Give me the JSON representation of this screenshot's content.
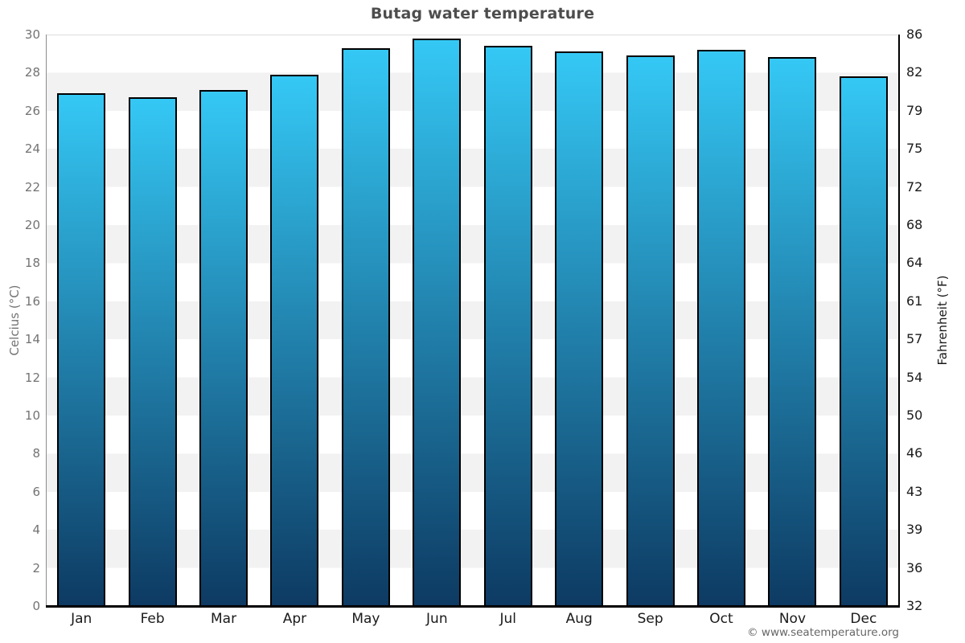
{
  "title": "Butag water temperature",
  "footer_credit": "© www.seatemperature.org",
  "chart_data": {
    "type": "bar",
    "title": "Butag water temperature",
    "ylabel_left": "Celcius (°C)",
    "ylabel_right": "Fahrenheit (°F)",
    "categories": [
      "Jan",
      "Feb",
      "Mar",
      "Apr",
      "May",
      "Jun",
      "Jul",
      "Aug",
      "Sep",
      "Oct",
      "Nov",
      "Dec"
    ],
    "values": [
      26.9,
      26.7,
      27.1,
      27.9,
      29.3,
      29.8,
      29.4,
      29.1,
      28.9,
      29.2,
      28.8,
      27.8
    ],
    "unit": "°C",
    "ylim": [
      0,
      30
    ],
    "yticks_celsius": [
      30,
      28,
      26,
      24,
      22,
      20,
      18,
      16,
      14,
      12,
      10,
      8,
      6,
      4,
      2,
      0
    ],
    "yticks_fahrenheit": [
      86,
      82,
      79,
      75,
      72,
      68,
      64,
      61,
      57,
      54,
      50,
      46,
      43,
      39,
      36,
      32
    ],
    "legend": "none",
    "grid": "horizontal-bands-every-2C",
    "colors": {
      "bar_gradient_top": "#35c8f5",
      "bar_gradient_bottom": "#0d3a62",
      "bar_border": "#000000",
      "band_gray": "#f2f2f2",
      "band_white": "#ffffff",
      "left_axis_line": "#8c8c8c",
      "right_axis_line": "#000000",
      "bottom_axis_line": "#000000",
      "left_label_color": "#737373",
      "right_label_color": "#1a1a1a",
      "title_color": "#4d4d4d",
      "footer_color": "#666666"
    }
  }
}
